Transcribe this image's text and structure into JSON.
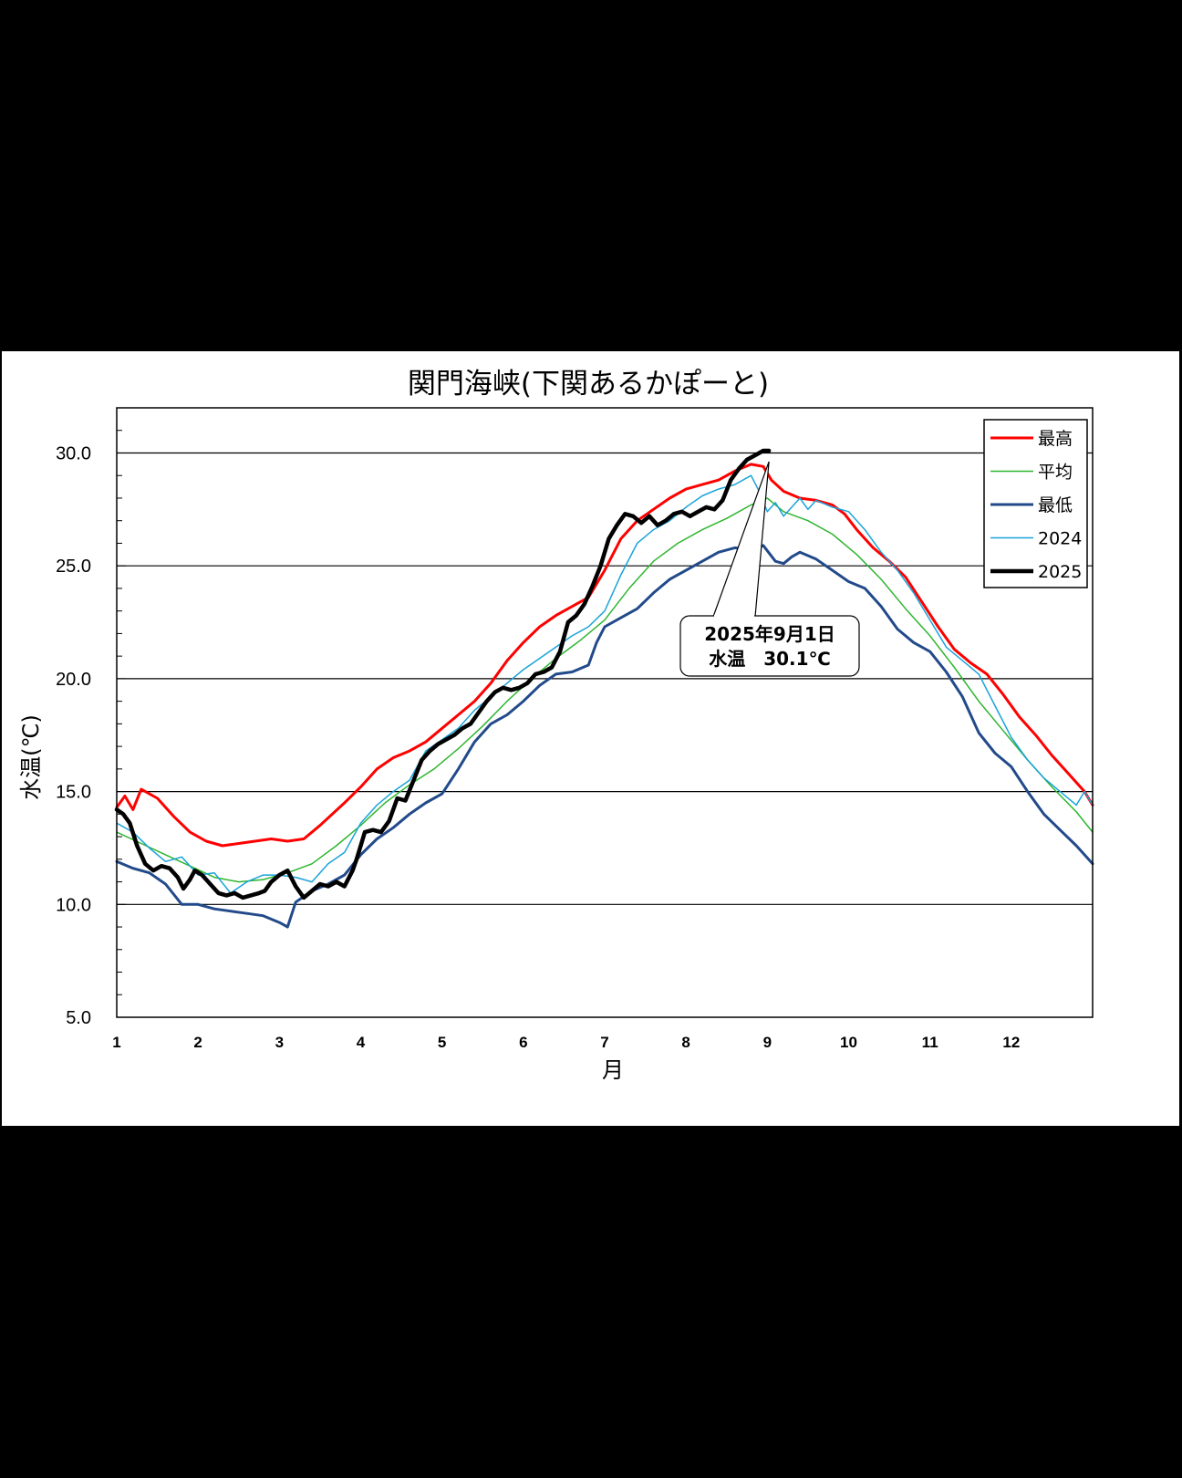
{
  "chart_data": {
    "type": "line",
    "title": "関門海峡(下関あるかぽーと)",
    "xlabel": "月",
    "ylabel": "水温(℃)",
    "xlim": [
      1,
      13
    ],
    "ylim": [
      5.0,
      32.0
    ],
    "yticks": [
      "5.0",
      "10.0",
      "15.0",
      "20.0",
      "25.0",
      "30.0"
    ],
    "ytick_values": [
      5,
      10,
      15,
      20,
      25,
      30
    ],
    "xticks": [
      "1",
      "2",
      "3",
      "4",
      "5",
      "6",
      "7",
      "8",
      "9",
      "10",
      "11",
      "12"
    ],
    "grid": "horizontal at 10, 15, 20, 25, 30",
    "legend_position": "top-right",
    "series": [
      {
        "name": "最高",
        "color": "#ff0000",
        "width": 3,
        "x": [
          1.0,
          1.1,
          1.2,
          1.3,
          1.5,
          1.7,
          1.9,
          2.1,
          2.3,
          2.5,
          2.7,
          2.9,
          3.1,
          3.3,
          3.5,
          3.8,
          4.0,
          4.2,
          4.4,
          4.6,
          4.8,
          5.0,
          5.2,
          5.4,
          5.6,
          5.8,
          6.0,
          6.2,
          6.4,
          6.6,
          6.8,
          7.0,
          7.2,
          7.4,
          7.6,
          7.8,
          8.0,
          8.2,
          8.4,
          8.6,
          8.8,
          8.95,
          9.05,
          9.2,
          9.4,
          9.6,
          9.8,
          9.95,
          10.1,
          10.3,
          10.5,
          10.7,
          10.9,
          11.1,
          11.3,
          11.5,
          11.7,
          11.9,
          12.1,
          12.3,
          12.5,
          12.7,
          12.9,
          13.0
        ],
        "y": [
          14.3,
          14.8,
          14.2,
          15.1,
          14.7,
          13.9,
          13.2,
          12.8,
          12.6,
          12.7,
          12.8,
          12.9,
          12.8,
          12.9,
          13.5,
          14.5,
          15.2,
          16.0,
          16.5,
          16.8,
          17.2,
          17.8,
          18.4,
          19.0,
          19.8,
          20.8,
          21.6,
          22.3,
          22.8,
          23.2,
          23.6,
          24.8,
          26.2,
          27.0,
          27.5,
          28.0,
          28.4,
          28.6,
          28.8,
          29.2,
          29.5,
          29.4,
          28.8,
          28.3,
          28.0,
          27.9,
          27.7,
          27.3,
          26.6,
          25.8,
          25.2,
          24.5,
          23.4,
          22.3,
          21.3,
          20.7,
          20.2,
          19.3,
          18.3,
          17.5,
          16.6,
          15.8,
          15.0,
          14.4
        ]
      },
      {
        "name": "平均",
        "color": "#2fb52f",
        "width": 1.5,
        "x": [
          1.0,
          1.3,
          1.6,
          1.9,
          2.2,
          2.5,
          2.8,
          3.1,
          3.4,
          3.7,
          4.0,
          4.3,
          4.6,
          4.9,
          5.2,
          5.5,
          5.8,
          6.1,
          6.4,
          6.7,
          7.0,
          7.3,
          7.6,
          7.9,
          8.2,
          8.5,
          8.8,
          9.0,
          9.2,
          9.5,
          9.8,
          10.1,
          10.4,
          10.7,
          11.0,
          11.3,
          11.6,
          11.9,
          12.2,
          12.5,
          12.8,
          13.0
        ],
        "y": [
          13.2,
          12.7,
          12.2,
          11.7,
          11.2,
          11.0,
          11.1,
          11.4,
          11.8,
          12.6,
          13.5,
          14.5,
          15.3,
          16.0,
          16.9,
          17.9,
          19.0,
          20.0,
          20.9,
          21.7,
          22.6,
          24.0,
          25.2,
          26.0,
          26.6,
          27.1,
          27.7,
          28.0,
          27.4,
          27.0,
          26.4,
          25.5,
          24.4,
          23.1,
          21.9,
          20.5,
          19.0,
          17.7,
          16.4,
          15.2,
          14.1,
          13.2
        ]
      },
      {
        "name": "最低",
        "color": "#224a8a",
        "width": 3,
        "x": [
          1.0,
          1.2,
          1.4,
          1.6,
          1.8,
          2.0,
          2.2,
          2.4,
          2.6,
          2.8,
          3.0,
          3.1,
          3.2,
          3.4,
          3.6,
          3.8,
          4.0,
          4.2,
          4.4,
          4.6,
          4.8,
          5.0,
          5.2,
          5.4,
          5.6,
          5.8,
          6.0,
          6.2,
          6.4,
          6.6,
          6.8,
          6.9,
          7.0,
          7.2,
          7.4,
          7.6,
          7.8,
          8.0,
          8.2,
          8.4,
          8.6,
          8.8,
          8.95,
          9.1,
          9.2,
          9.3,
          9.4,
          9.6,
          9.8,
          10.0,
          10.2,
          10.4,
          10.6,
          10.8,
          11.0,
          11.2,
          11.4,
          11.6,
          11.8,
          12.0,
          12.2,
          12.4,
          12.6,
          12.8,
          13.0
        ],
        "y": [
          11.9,
          11.6,
          11.4,
          10.9,
          10.0,
          10.0,
          9.8,
          9.7,
          9.6,
          9.5,
          9.2,
          9.0,
          10.1,
          10.6,
          10.9,
          11.3,
          12.2,
          12.9,
          13.4,
          14.0,
          14.5,
          14.9,
          16.0,
          17.2,
          18.0,
          18.4,
          19.0,
          19.7,
          20.2,
          20.3,
          20.6,
          21.6,
          22.3,
          22.7,
          23.1,
          23.8,
          24.4,
          24.8,
          25.2,
          25.6,
          25.8,
          25.7,
          25.9,
          25.2,
          25.1,
          25.4,
          25.6,
          25.3,
          24.8,
          24.3,
          24.0,
          23.2,
          22.2,
          21.6,
          21.2,
          20.3,
          19.2,
          17.6,
          16.7,
          16.1,
          15.0,
          14.0,
          13.3,
          12.6,
          11.8
        ]
      },
      {
        "name": "2024",
        "color": "#1aa3d9",
        "width": 1.5,
        "x": [
          1.0,
          1.2,
          1.4,
          1.6,
          1.8,
          2.0,
          2.2,
          2.4,
          2.6,
          2.8,
          3.0,
          3.2,
          3.4,
          3.6,
          3.8,
          4.0,
          4.2,
          4.4,
          4.6,
          4.8,
          5.0,
          5.2,
          5.4,
          5.6,
          5.8,
          6.0,
          6.2,
          6.4,
          6.6,
          6.8,
          7.0,
          7.2,
          7.4,
          7.6,
          7.8,
          8.0,
          8.2,
          8.4,
          8.6,
          8.8,
          8.9,
          9.0,
          9.1,
          9.2,
          9.4,
          9.5,
          9.6,
          9.8,
          10.0,
          10.2,
          10.4,
          10.6,
          10.8,
          11.0,
          11.2,
          11.4,
          11.6,
          11.8,
          12.0,
          12.2,
          12.4,
          12.6,
          12.8,
          12.9,
          13.0
        ],
        "y": [
          13.6,
          13.2,
          12.5,
          11.9,
          12.1,
          11.3,
          11.4,
          10.5,
          11.0,
          11.3,
          11.3,
          11.2,
          11.0,
          11.8,
          12.3,
          13.6,
          14.4,
          15.0,
          15.5,
          16.8,
          17.3,
          17.8,
          18.6,
          19.2,
          19.8,
          20.4,
          20.9,
          21.4,
          21.9,
          22.3,
          23.0,
          24.6,
          26.0,
          26.6,
          27.0,
          27.6,
          28.1,
          28.4,
          28.6,
          29.0,
          28.3,
          27.4,
          27.8,
          27.2,
          28.0,
          27.5,
          27.9,
          27.6,
          27.4,
          26.6,
          25.6,
          24.8,
          23.8,
          22.6,
          21.4,
          20.8,
          20.2,
          18.8,
          17.4,
          16.4,
          15.6,
          15.0,
          14.4,
          15.0,
          14.4
        ]
      },
      {
        "name": "2025",
        "color": "#000000",
        "width": 4.5,
        "x": [
          1.0,
          1.08,
          1.16,
          1.25,
          1.35,
          1.45,
          1.55,
          1.65,
          1.75,
          1.82,
          1.9,
          1.96,
          2.05,
          2.15,
          2.25,
          2.35,
          2.45,
          2.55,
          2.65,
          2.75,
          2.82,
          2.9,
          3.0,
          3.1,
          3.2,
          3.3,
          3.4,
          3.5,
          3.6,
          3.7,
          3.8,
          3.9,
          3.95,
          4.05,
          4.15,
          4.25,
          4.35,
          4.45,
          4.55,
          4.65,
          4.75,
          4.85,
          4.95,
          5.05,
          5.15,
          5.25,
          5.35,
          5.45,
          5.55,
          5.65,
          5.75,
          5.85,
          5.95,
          6.05,
          6.15,
          6.25,
          6.35,
          6.45,
          6.55,
          6.65,
          6.75,
          6.85,
          6.95,
          7.05,
          7.15,
          7.25,
          7.35,
          7.45,
          7.55,
          7.65,
          7.75,
          7.85,
          7.95,
          8.05,
          8.15,
          8.25,
          8.35,
          8.45,
          8.55,
          8.65,
          8.75,
          8.85,
          8.95,
          9.02
        ],
        "y": [
          14.2,
          14.0,
          13.6,
          12.6,
          11.8,
          11.5,
          11.7,
          11.6,
          11.2,
          10.7,
          11.1,
          11.5,
          11.3,
          10.9,
          10.5,
          10.4,
          10.5,
          10.3,
          10.4,
          10.5,
          10.6,
          11.0,
          11.3,
          11.5,
          10.8,
          10.3,
          10.6,
          10.9,
          10.8,
          11.0,
          10.8,
          11.5,
          12.0,
          13.2,
          13.3,
          13.2,
          13.7,
          14.7,
          14.6,
          15.5,
          16.4,
          16.8,
          17.1,
          17.3,
          17.5,
          17.8,
          18.0,
          18.5,
          19.0,
          19.4,
          19.6,
          19.5,
          19.6,
          19.8,
          20.2,
          20.3,
          20.5,
          21.2,
          22.5,
          22.8,
          23.3,
          24.1,
          25.0,
          26.2,
          26.8,
          27.3,
          27.2,
          26.9,
          27.2,
          26.8,
          27.0,
          27.3,
          27.4,
          27.2,
          27.4,
          27.6,
          27.5,
          27.9,
          28.8,
          29.3,
          29.7,
          29.9,
          30.1,
          30.1
        ]
      }
    ],
    "annotation": {
      "line1": "2025年9月1日",
      "line2": "水温　30.1℃",
      "x": 9.02,
      "y": 30.1
    }
  }
}
